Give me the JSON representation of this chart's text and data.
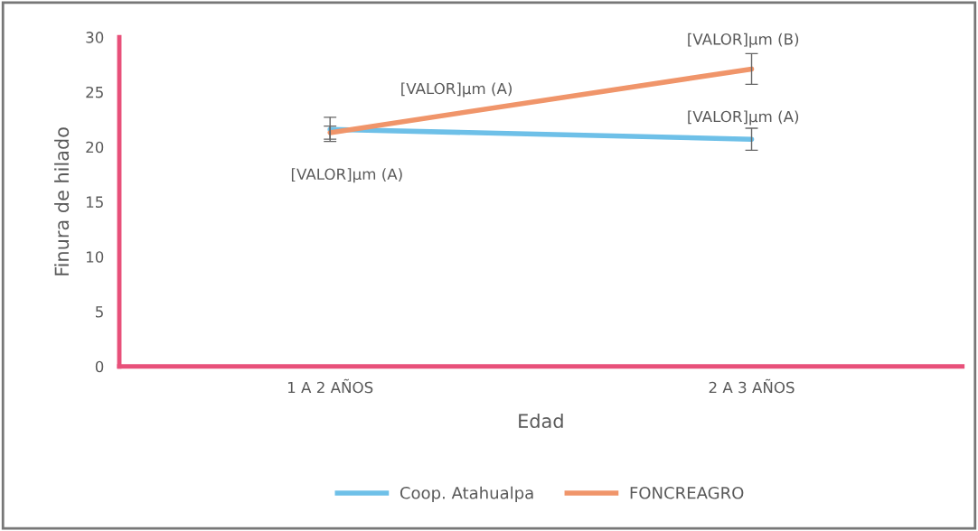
{
  "chart_data": {
    "type": "line",
    "xlabel": "Edad",
    "ylabel": "Finura de hilado",
    "categories": [
      "1 A 2 AÑOS",
      "2 A 3 AÑOS"
    ],
    "series": [
      {
        "name": "Coop. Atahualpa",
        "color": "#6ec0e8",
        "values": [
          21.6,
          20.7
        ],
        "errors": [
          1.1,
          1.0
        ]
      },
      {
        "name": "FONCREAGRO",
        "color": "#f0956a",
        "values": [
          21.3,
          27.1
        ],
        "errors": [
          0.6,
          1.4
        ]
      }
    ],
    "ylim": [
      0,
      30
    ],
    "yticks": [
      0,
      5,
      10,
      15,
      20,
      25,
      30
    ],
    "grid": false,
    "legend": "bottom",
    "marker": "none",
    "line_style": "solid",
    "annotations": [
      "[VALOR]µm (A)",
      "[VALOR]µm (A)",
      "[VALOR]µm (B)",
      "[VALOR]µm (A)"
    ]
  }
}
